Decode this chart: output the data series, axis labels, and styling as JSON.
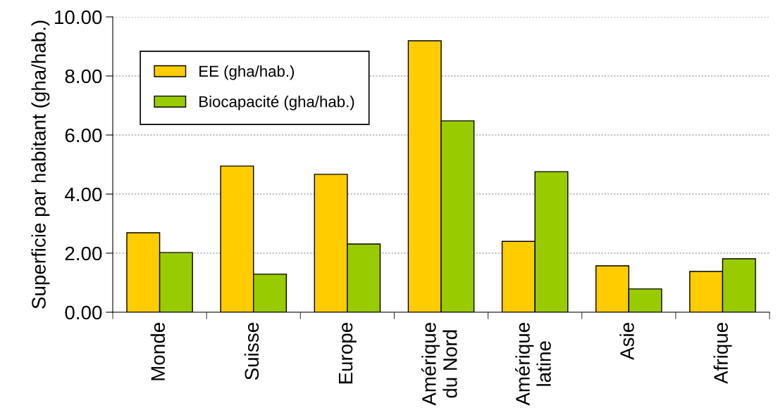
{
  "chart_data": {
    "type": "bar",
    "ylabel": "Superficie par habitant (gha/hab.)",
    "categories": [
      "Monde",
      "Suisse",
      "Europe",
      "Amérique\ndu Nord",
      "Amérique\nlatine",
      "Asie",
      "Afrique"
    ],
    "series": [
      {
        "name": "EE (gha/hab.)",
        "color": "#ffcc00",
        "values": [
          2.69,
          4.95,
          4.67,
          9.19,
          2.4,
          1.57,
          1.38
        ]
      },
      {
        "name": "Biocapacité (gha/hab.)",
        "color": "#99cc00",
        "values": [
          2.02,
          1.29,
          2.31,
          6.48,
          4.76,
          0.79,
          1.81
        ]
      }
    ],
    "ylim": [
      0,
      10
    ],
    "yticks": [
      {
        "value": 0,
        "label": "0.00"
      },
      {
        "value": 2,
        "label": "2.00"
      },
      {
        "value": 4,
        "label": "4.00"
      },
      {
        "value": 6,
        "label": "6.00"
      },
      {
        "value": 8,
        "label": "8.00"
      },
      {
        "value": 10,
        "label": "10.00"
      }
    ],
    "grid": "y",
    "legend": "top left"
  }
}
